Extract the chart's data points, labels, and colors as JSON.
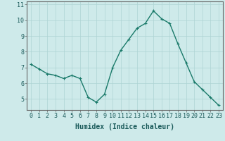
{
  "x": [
    0,
    1,
    2,
    3,
    4,
    5,
    6,
    7,
    8,
    9,
    10,
    11,
    12,
    13,
    14,
    15,
    16,
    17,
    18,
    19,
    20,
    21,
    22,
    23
  ],
  "y": [
    7.2,
    6.9,
    6.6,
    6.5,
    6.3,
    6.5,
    6.3,
    5.1,
    4.8,
    5.3,
    7.0,
    8.1,
    8.8,
    9.5,
    9.8,
    10.6,
    10.1,
    9.8,
    8.5,
    7.3,
    6.1,
    5.6,
    5.1,
    4.6
  ],
  "line_color": "#1a7a6a",
  "marker": "+",
  "marker_size": 3,
  "linewidth": 1.0,
  "bg_color": "#ceeaea",
  "grid_color": "#aed4d4",
  "xlabel": "Humidex (Indice chaleur)",
  "xlabel_fontsize": 7,
  "tick_fontsize": 6,
  "ylim": [
    4.3,
    11.2
  ],
  "xlim": [
    -0.5,
    23.5
  ],
  "yticks": [
    5,
    6,
    7,
    8,
    9,
    10,
    11
  ],
  "xticks": [
    0,
    1,
    2,
    3,
    4,
    5,
    6,
    7,
    8,
    9,
    10,
    11,
    12,
    13,
    14,
    15,
    16,
    17,
    18,
    19,
    20,
    21,
    22,
    23
  ],
  "spine_color": "#666666"
}
